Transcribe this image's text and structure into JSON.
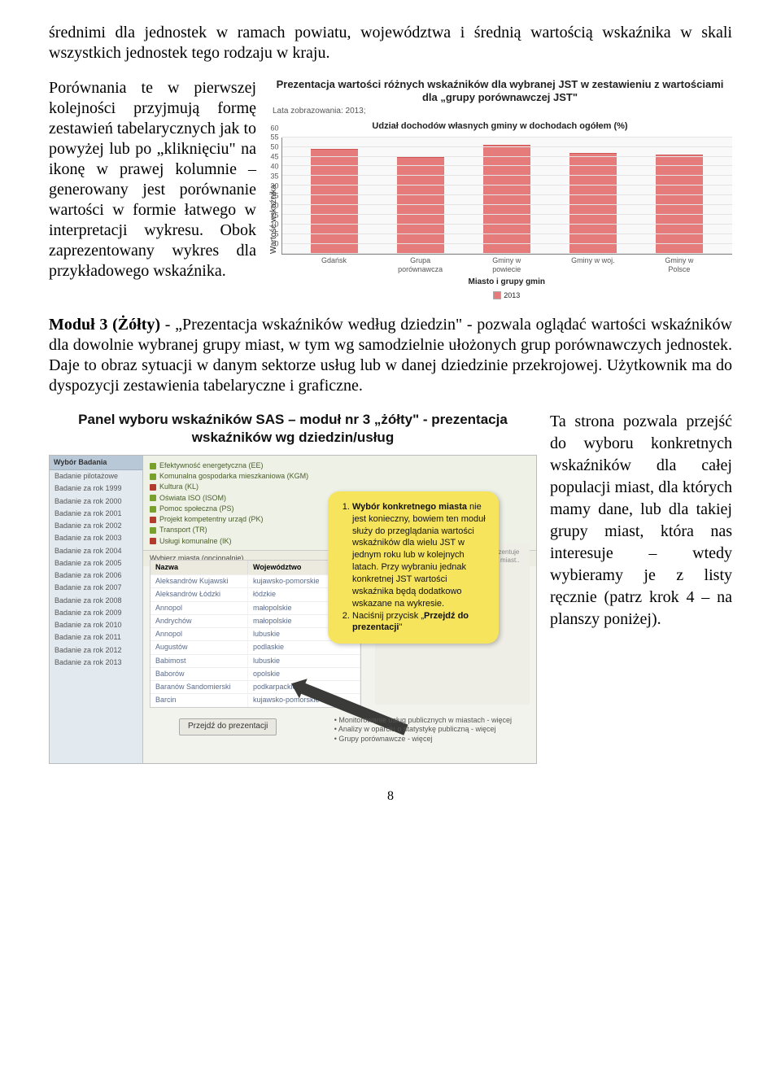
{
  "p1": "średnimi dla jednostek w ramach powiatu, województwa i średnią wartością wskaźnika w skali wszystkich jednostek tego rodzaju w kraju.",
  "p2": "Porównania te w pierwszej kolejności przyjmują formę zestawień tabelarycznych jak to powyżej lub po „kliknięciu\" na ikonę w prawej kolumnie – generowany jest porównanie wartości w formie łatwego w interpretacji wykresu. Obok zaprezentowany wykres dla przykładowego wskaźnika.",
  "chart": {
    "title": "Prezentacja wartości różnych wskaźników dla wybranej JST w zestawieniu z wartościami dla „grupy porównawczej JST\"",
    "meta": "Lata zobrazowania: 2013;",
    "subtitle": "Udział dochodów własnych gminy w dochodach ogółem (%)",
    "y_label": "Wartość wskaźnika",
    "x_label": "Miasto i grupy gmin",
    "y_max": 60,
    "y_ticks": [
      0,
      5,
      10,
      15,
      20,
      25,
      30,
      35,
      40,
      45,
      50,
      55,
      60
    ],
    "categories": [
      "Gdańsk",
      "Grupa porównawcza",
      "Gminy w powiecie",
      "Gminy w woj.",
      "Gminy w Polsce"
    ],
    "values": [
      54,
      50,
      56,
      52,
      51
    ],
    "bar_color": "#e57b7b",
    "grid_color": "#e4e4e4",
    "bg": "#f9f9f9",
    "legend": "2013"
  },
  "modul3": {
    "lead": "Moduł 3 (Żółty)",
    "name": " - „Prezentacja wskaźników według dziedzin\" - ",
    "rest": "pozwala oglądać wartości wskaźników dla dowolnie wybranej grupy miast, w tym wg samodzielnie ułożonych grup porównawczych jednostek. Daje to obraz sytuacji w danym sektorze usług lub w danej dziedzinie przekrojowej. Użytkownik ma do dyspozycji zestawienia tabelaryczne i graficzne."
  },
  "panel": {
    "title": "Panel wyboru wskaźników SAS – moduł nr 3 „żółty\" - prezentacja wskaźników wg dziedzin/usług",
    "sidebar_header": "Wybór Badania",
    "sidebar_items": [
      "Badanie pilotażowe",
      "Badanie za rok 1999",
      "Badanie za rok 2000",
      "Badanie za rok 2001",
      "Badanie za rok 2002",
      "Badanie za rok 2003",
      "Badanie za rok 2004",
      "Badanie za rok 2005",
      "Badanie za rok 2006",
      "Badanie za rok 2007",
      "Badanie za rok 2008",
      "Badanie za rok 2009",
      "Badanie za rok 2010",
      "Badanie za rok 2011",
      "Badanie za rok 2012",
      "Badanie za rok 2013"
    ],
    "top_items": [
      {
        "c": "#7aa02c",
        "t": "Efektywność energetyczna (EE)"
      },
      {
        "c": "#7aa02c",
        "t": "Komunalna gospodarka mieszkaniowa (KGM)"
      },
      {
        "c": "#b43c2e",
        "t": "Kultura (KL)"
      },
      {
        "c": "#7aa02c",
        "t": "Oświata ISO (ISOM)"
      },
      {
        "c": "#7aa02c",
        "t": "Pomoc społeczna (PS)"
      },
      {
        "c": "#b43c2e",
        "t": "Projekt kompetentny urząd (PK)"
      },
      {
        "c": "#7aa02c",
        "t": "Transport (TR)"
      },
      {
        "c": "#b43c2e",
        "t": "Usługi komunalne (IK)"
      }
    ],
    "midlabel": "Wybierz miasta (opcjonalnie)",
    "th_a": "Nazwa",
    "th_b": "Województwo",
    "rows": [
      [
        "Aleksandrów Kujawski",
        "kujawsko-pomorskie"
      ],
      [
        "Aleksandrów Łódzki",
        "łódzkie"
      ],
      [
        "Annopol",
        "małopolskie"
      ],
      [
        "Andrychów",
        "małopolskie"
      ],
      [
        "Annopol",
        "lubuskie"
      ],
      [
        "Augustów",
        "podlaskie"
      ],
      [
        "Babimost",
        "lubuskie"
      ],
      [
        "Baborów",
        "opolskie"
      ],
      [
        "Baranów Sandomierski",
        "podkarpackie"
      ],
      [
        "Barcin",
        "kujawsko-pomorskie"
      ]
    ],
    "btn": "Przejdź do prezentacji",
    "callout_1_b": "Wybór konkretnego miasta",
    "callout_1_rest": " nie jest konieczny, bowiem ten moduł służy do przeglądania wartości wskaźników dla wielu JST w jednym roku lub w kolejnych latach. Przy wybraniu jednak konkretnej JST wartości wskaźnika będą dodatkowo wskazane na wykresie.",
    "callout_2_a": "Naciśnij przycisk „",
    "callout_2_b": "Przejdź do prezentacji",
    "callout_2_c": "\"",
    "bullets": [
      "Monitorowanie usług publicznych w miastach - więcej",
      "Analizy w oparciu o statystykę publiczną - więcej",
      "Grupy porównawcze - więcej"
    ]
  },
  "right_text": "Ta strona pozwala przejść do wyboru konkretnych wskaźników dla całej populacji miast, dla których mamy dane, lub dla takiej grupy miast, która nas interesuje – wtedy wybieramy je z listy ręcznie (patrz krok 4 – na planszy poniżej).",
  "page_num": "8"
}
